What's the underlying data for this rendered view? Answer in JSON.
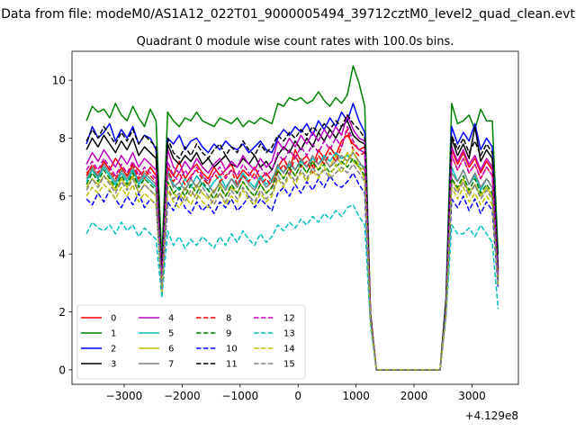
{
  "figure": {
    "suptitle": "Data from file: modeM0/AS1A12_022T01_9000005494_39712cztM0_level2_quad_clean.evt"
  },
  "chart_data": {
    "type": "line",
    "title": "Quadrant 0 module wise count rates with 100.0s bins.",
    "xlabel": "",
    "ylabel": "",
    "x_offset_label": "+4.129e8",
    "xlim": [
      -3900,
      3800
    ],
    "ylim": [
      -0.5,
      11.0
    ],
    "x_ticks": [
      -3000,
      -2000,
      -1000,
      0,
      1000,
      2000,
      3000
    ],
    "x_tick_labels": [
      "−3000",
      "−2000",
      "−1000",
      "0",
      "1000",
      "2000",
      "3000"
    ],
    "y_ticks": [
      0,
      2,
      4,
      6,
      8,
      10
    ],
    "y_tick_labels": [
      "0",
      "2",
      "4",
      "6",
      "8",
      "10"
    ],
    "grid": false,
    "legend": {
      "placement": "lower-left",
      "columns": 4
    },
    "x": [
      -3650,
      -3550,
      -3450,
      -3350,
      -3250,
      -3150,
      -3050,
      -2950,
      -2850,
      -2750,
      -2650,
      -2550,
      -2450,
      -2350,
      -2250,
      -2150,
      -2050,
      -1950,
      -1850,
      -1750,
      -1650,
      -1550,
      -1450,
      -1350,
      -1250,
      -1150,
      -1050,
      -950,
      -850,
      -750,
      -650,
      -550,
      -450,
      -350,
      -250,
      -150,
      -50,
      50,
      150,
      250,
      350,
      450,
      550,
      650,
      750,
      850,
      950,
      1050,
      1150,
      1250,
      1350,
      2450,
      2550,
      2650,
      2750,
      2850,
      2950,
      3050,
      3150,
      3250,
      3350,
      3450
    ],
    "series": [
      {
        "name": "0",
        "color": "#ff0000",
        "dash": "solid",
        "values": [
          6.8,
          7.0,
          6.6,
          7.2,
          6.9,
          7.3,
          7.0,
          6.7,
          7.1,
          6.9,
          6.6,
          7.0,
          6.7,
          3.5,
          7.0,
          6.7,
          7.2,
          6.6,
          6.9,
          7.1,
          6.8,
          6.6,
          7.0,
          6.7,
          6.9,
          7.1,
          6.6,
          6.9,
          6.7,
          7.0,
          6.6,
          6.8,
          6.5,
          7.0,
          7.3,
          6.9,
          7.6,
          7.2,
          7.4,
          7.0,
          7.6,
          7.3,
          7.7,
          7.4,
          7.9,
          8.1,
          7.8,
          7.6,
          7.7,
          1.9,
          0.0,
          0.0,
          2.1,
          7.6,
          7.1,
          7.5,
          7.0,
          7.3,
          6.8,
          7.2,
          6.9,
          3.2
        ]
      },
      {
        "name": "1",
        "color": "#008000",
        "dash": "solid",
        "values": [
          8.6,
          9.1,
          8.9,
          9.0,
          8.7,
          9.2,
          8.8,
          8.6,
          9.1,
          8.7,
          8.4,
          9.0,
          8.6,
          3.8,
          8.9,
          8.6,
          8.4,
          8.7,
          8.6,
          8.9,
          8.6,
          8.5,
          8.4,
          8.7,
          8.6,
          8.5,
          8.7,
          8.4,
          8.6,
          8.5,
          8.7,
          8.6,
          8.5,
          9.2,
          9.1,
          9.4,
          9.3,
          9.4,
          9.2,
          9.3,
          9.6,
          9.3,
          9.1,
          9.4,
          9.2,
          9.5,
          10.5,
          9.9,
          9.1,
          2.0,
          0.0,
          0.0,
          2.5,
          9.2,
          8.5,
          8.6,
          8.8,
          8.3,
          9.0,
          8.6,
          8.6,
          4.0
        ]
      },
      {
        "name": "2",
        "color": "#0000ff",
        "dash": "solid",
        "values": [
          7.8,
          8.4,
          8.0,
          8.2,
          8.5,
          7.9,
          8.3,
          8.0,
          8.4,
          7.8,
          8.1,
          8.0,
          7.6,
          3.3,
          8.0,
          7.8,
          8.1,
          7.6,
          7.9,
          8.0,
          7.7,
          7.5,
          7.8,
          7.6,
          7.9,
          7.7,
          7.6,
          7.8,
          7.5,
          7.7,
          7.9,
          7.6,
          7.5,
          8.0,
          8.3,
          8.1,
          8.4,
          8.2,
          8.5,
          8.1,
          8.6,
          8.3,
          8.7,
          8.4,
          8.9,
          8.6,
          9.2,
          8.6,
          8.2,
          1.9,
          0.0,
          0.0,
          2.3,
          8.4,
          7.8,
          8.2,
          7.9,
          8.5,
          7.6,
          8.0,
          7.7,
          3.5
        ]
      },
      {
        "name": "3",
        "color": "#000000",
        "dash": "solid",
        "values": [
          7.6,
          8.0,
          7.7,
          8.1,
          7.8,
          7.5,
          7.9,
          7.6,
          8.0,
          7.4,
          7.7,
          7.5,
          7.3,
          3.2,
          7.8,
          7.3,
          7.1,
          7.4,
          7.2,
          7.5,
          7.1,
          7.3,
          7.0,
          7.2,
          7.4,
          7.1,
          7.0,
          7.3,
          7.1,
          7.4,
          7.0,
          7.2,
          6.9,
          7.4,
          7.7,
          7.5,
          7.9,
          7.6,
          8.0,
          7.7,
          8.2,
          7.9,
          8.3,
          8.0,
          8.4,
          8.6,
          8.1,
          7.9,
          7.8,
          1.9,
          0.0,
          0.0,
          2.2,
          8.0,
          7.4,
          7.8,
          7.3,
          8.4,
          7.2,
          7.6,
          7.3,
          3.4
        ]
      },
      {
        "name": "4",
        "color": "#bf00bf",
        "dash": "solid",
        "values": [
          7.1,
          7.5,
          7.2,
          7.6,
          7.3,
          7.0,
          7.4,
          7.1,
          7.5,
          7.0,
          7.3,
          7.1,
          6.9,
          3.1,
          7.6,
          7.0,
          6.8,
          7.2,
          6.9,
          7.3,
          7.0,
          6.8,
          7.1,
          7.3,
          6.9,
          7.2,
          7.0,
          7.4,
          7.1,
          6.9,
          7.3,
          7.0,
          7.2,
          7.9,
          7.6,
          8.0,
          7.7,
          8.1,
          7.8,
          8.2,
          7.9,
          8.3,
          8.0,
          8.4,
          8.1,
          8.8,
          8.3,
          8.0,
          7.9,
          1.9,
          0.0,
          0.0,
          2.1,
          7.7,
          7.2,
          7.6,
          7.1,
          7.4,
          6.9,
          7.3,
          7.0,
          3.3
        ]
      },
      {
        "name": "5",
        "color": "#00bfbf",
        "dash": "solid",
        "values": [
          6.5,
          6.9,
          6.6,
          7.0,
          6.7,
          6.4,
          6.8,
          6.5,
          6.9,
          6.4,
          6.7,
          6.5,
          6.3,
          2.9,
          6.9,
          6.4,
          6.2,
          6.6,
          6.3,
          6.7,
          6.4,
          6.2,
          6.5,
          6.7,
          6.3,
          6.6,
          6.4,
          6.8,
          6.5,
          6.3,
          6.7,
          6.4,
          6.6,
          7.0,
          6.8,
          7.1,
          6.9,
          7.2,
          7.0,
          7.3,
          7.1,
          7.4,
          7.2,
          7.5,
          7.3,
          7.4,
          7.2,
          7.1,
          7.0,
          1.8,
          0.0,
          0.0,
          2.0,
          7.0,
          6.5,
          6.9,
          6.4,
          6.7,
          6.2,
          6.6,
          6.3,
          3.1
        ]
      },
      {
        "name": "6",
        "color": "#bfbf00",
        "dash": "solid",
        "values": [
          6.3,
          6.6,
          6.4,
          6.7,
          6.5,
          6.2,
          6.6,
          6.3,
          6.7,
          6.1,
          6.4,
          6.2,
          6.0,
          2.8,
          6.5,
          6.1,
          5.9,
          6.3,
          6.0,
          6.4,
          6.1,
          5.9,
          6.2,
          6.4,
          6.0,
          6.3,
          6.1,
          6.5,
          6.2,
          6.0,
          6.4,
          6.1,
          6.3,
          6.9,
          6.6,
          7.0,
          6.7,
          7.1,
          6.8,
          7.2,
          6.9,
          7.3,
          7.0,
          7.4,
          7.1,
          7.5,
          7.2,
          7.0,
          6.9,
          1.8,
          0.0,
          0.0,
          2.0,
          6.6,
          6.2,
          6.6,
          6.1,
          6.4,
          6.0,
          6.3,
          6.0,
          3.0
        ]
      },
      {
        "name": "7",
        "color": "#808080",
        "dash": "solid",
        "values": [
          6.6,
          7.0,
          6.7,
          7.1,
          6.8,
          6.5,
          6.9,
          6.6,
          7.0,
          6.5,
          6.8,
          6.6,
          6.4,
          3.0,
          6.8,
          6.3,
          6.5,
          6.2,
          6.6,
          6.3,
          6.7,
          6.4,
          6.1,
          6.5,
          6.2,
          6.6,
          6.3,
          6.7,
          6.4,
          6.2,
          6.6,
          6.3,
          6.5,
          7.1,
          6.8,
          7.2,
          6.9,
          7.3,
          7.0,
          7.4,
          7.1,
          7.3,
          7.0,
          7.2,
          7.4,
          7.2,
          7.5,
          7.2,
          6.9,
          1.8,
          0.0,
          0.0,
          2.0,
          6.8,
          6.5,
          6.9,
          6.4,
          6.8,
          6.3,
          6.6,
          6.3,
          3.1
        ]
      },
      {
        "name": "8",
        "color": "#ff0000",
        "dash": "dashed",
        "values": [
          6.7,
          7.1,
          6.8,
          7.2,
          6.9,
          6.6,
          7.0,
          6.7,
          7.1,
          6.6,
          6.9,
          6.7,
          6.5,
          3.1,
          6.9,
          6.5,
          6.8,
          6.4,
          6.7,
          6.9,
          6.6,
          6.4,
          6.8,
          6.5,
          6.7,
          6.9,
          6.4,
          6.7,
          6.5,
          6.8,
          6.4,
          6.6,
          6.3,
          6.8,
          7.1,
          6.7,
          7.4,
          7.0,
          7.2,
          6.8,
          7.4,
          7.1,
          7.5,
          7.2,
          7.7,
          8.3,
          7.6,
          7.4,
          7.5,
          1.9,
          0.0,
          0.0,
          2.1,
          7.4,
          6.9,
          7.3,
          6.8,
          7.1,
          6.6,
          7.0,
          6.7,
          3.1
        ]
      },
      {
        "name": "9",
        "color": "#008000",
        "dash": "dashed",
        "values": [
          6.4,
          6.8,
          6.5,
          6.9,
          6.6,
          6.3,
          6.7,
          6.4,
          6.8,
          6.3,
          6.6,
          6.4,
          6.2,
          2.9,
          6.5,
          6.1,
          6.3,
          6.0,
          6.4,
          6.1,
          6.5,
          6.2,
          5.9,
          6.3,
          6.0,
          6.4,
          6.1,
          6.5,
          6.2,
          6.0,
          6.4,
          6.1,
          6.3,
          6.9,
          6.6,
          7.0,
          6.7,
          7.1,
          6.8,
          7.2,
          6.9,
          7.1,
          6.8,
          7.0,
          7.2,
          7.0,
          7.3,
          7.0,
          6.7,
          1.8,
          0.0,
          0.0,
          2.0,
          6.6,
          6.3,
          6.7,
          6.2,
          6.6,
          6.1,
          6.4,
          6.1,
          3.0
        ]
      },
      {
        "name": "10",
        "color": "#0000ff",
        "dash": "dashed",
        "values": [
          5.9,
          5.7,
          6.1,
          5.8,
          6.2,
          5.9,
          5.6,
          6.0,
          5.7,
          6.1,
          5.6,
          5.9,
          5.7,
          2.7,
          5.8,
          5.5,
          6.0,
          5.6,
          5.4,
          5.8,
          5.5,
          5.7,
          5.4,
          5.8,
          5.6,
          5.9,
          5.5,
          5.7,
          6.0,
          5.6,
          5.9,
          5.7,
          5.5,
          6.1,
          6.3,
          6.0,
          6.4,
          6.1,
          6.5,
          6.2,
          6.6,
          6.3,
          6.7,
          6.4,
          6.3,
          6.5,
          6.8,
          6.4,
          6.1,
          1.7,
          0.0,
          0.0,
          1.9,
          5.9,
          5.6,
          6.0,
          5.5,
          5.9,
          5.4,
          5.8,
          5.5,
          2.8
        ]
      },
      {
        "name": "11",
        "color": "#000000",
        "dash": "dashed",
        "values": [
          7.9,
          8.3,
          8.0,
          8.4,
          8.1,
          7.8,
          8.2,
          7.9,
          8.3,
          7.8,
          8.1,
          7.9,
          7.7,
          3.3,
          8.0,
          7.5,
          7.3,
          7.7,
          7.4,
          7.8,
          7.5,
          7.3,
          7.6,
          7.8,
          7.4,
          7.7,
          7.5,
          7.9,
          7.6,
          7.4,
          7.8,
          7.5,
          7.7,
          8.1,
          7.9,
          8.2,
          8.0,
          8.3,
          8.1,
          8.4,
          8.2,
          8.5,
          8.3,
          8.6,
          8.4,
          8.8,
          8.5,
          8.3,
          8.0,
          1.9,
          0.0,
          0.0,
          2.2,
          8.1,
          7.6,
          8.0,
          7.5,
          7.9,
          7.4,
          7.8,
          7.5,
          3.4
        ]
      },
      {
        "name": "12",
        "color": "#bf00bf",
        "dash": "dashed",
        "values": [
          6.9,
          7.2,
          6.9,
          7.3,
          7.0,
          6.7,
          7.1,
          6.8,
          7.2,
          6.7,
          7.0,
          6.8,
          6.6,
          3.1,
          7.2,
          6.7,
          6.5,
          6.9,
          6.6,
          7.0,
          6.7,
          6.5,
          6.8,
          7.0,
          6.6,
          6.9,
          6.7,
          7.1,
          6.8,
          6.6,
          7.0,
          6.7,
          6.9,
          7.5,
          7.2,
          7.6,
          7.3,
          7.7,
          7.4,
          7.8,
          7.5,
          7.9,
          7.6,
          8.0,
          7.7,
          8.4,
          7.9,
          7.6,
          7.5,
          1.9,
          0.0,
          0.0,
          2.1,
          7.4,
          6.9,
          7.3,
          6.8,
          7.1,
          6.6,
          7.0,
          6.7,
          3.2
        ]
      },
      {
        "name": "13",
        "color": "#00bfbf",
        "dash": "dashed",
        "values": [
          4.7,
          5.1,
          4.9,
          4.8,
          5.0,
          4.7,
          5.1,
          4.8,
          5.0,
          4.6,
          4.9,
          4.7,
          4.5,
          2.5,
          4.8,
          4.3,
          4.6,
          4.2,
          4.5,
          4.3,
          4.6,
          4.4,
          4.2,
          4.6,
          4.3,
          4.7,
          4.4,
          4.8,
          4.5,
          4.3,
          4.7,
          4.4,
          4.6,
          5.0,
          4.8,
          5.1,
          4.9,
          5.2,
          5.0,
          5.3,
          5.1,
          5.4,
          5.2,
          5.5,
          5.3,
          5.6,
          5.7,
          5.3,
          5.0,
          1.5,
          0.0,
          0.0,
          1.8,
          5.0,
          4.7,
          4.7,
          4.9,
          4.6,
          5.0,
          4.7,
          4.4,
          2.1
        ]
      },
      {
        "name": "14",
        "color": "#bfbf00",
        "dash": "dashed",
        "values": [
          6.0,
          6.3,
          6.1,
          6.4,
          6.2,
          5.9,
          6.3,
          6.0,
          6.4,
          5.8,
          6.1,
          5.9,
          5.7,
          2.7,
          6.2,
          5.8,
          5.6,
          6.0,
          5.7,
          6.1,
          5.8,
          5.6,
          5.9,
          6.1,
          5.7,
          6.0,
          5.8,
          6.2,
          5.9,
          5.7,
          6.1,
          5.8,
          6.0,
          6.6,
          6.3,
          6.7,
          6.4,
          6.8,
          6.5,
          6.9,
          6.6,
          7.0,
          6.7,
          7.1,
          6.8,
          7.2,
          7.6,
          7.0,
          6.6,
          1.7,
          0.0,
          0.0,
          1.9,
          6.3,
          5.9,
          6.3,
          5.8,
          6.1,
          5.7,
          6.0,
          5.7,
          2.9
        ]
      },
      {
        "name": "15",
        "color": "#808080",
        "dash": "dashed",
        "values": [
          6.2,
          6.6,
          6.3,
          6.7,
          6.4,
          6.1,
          6.5,
          6.2,
          6.6,
          6.1,
          6.4,
          6.2,
          6.0,
          2.8,
          6.3,
          5.9,
          6.1,
          5.8,
          6.2,
          5.9,
          6.3,
          6.0,
          5.7,
          6.1,
          5.8,
          6.2,
          5.9,
          6.3,
          6.0,
          5.8,
          6.2,
          5.9,
          6.1,
          6.7,
          6.4,
          6.8,
          6.5,
          6.9,
          6.6,
          7.0,
          6.7,
          6.9,
          6.6,
          6.8,
          7.0,
          6.8,
          7.1,
          6.8,
          6.5,
          1.8,
          0.0,
          0.0,
          2.0,
          6.4,
          6.1,
          6.5,
          6.0,
          6.4,
          5.9,
          6.2,
          5.9,
          2.9
        ]
      }
    ]
  }
}
